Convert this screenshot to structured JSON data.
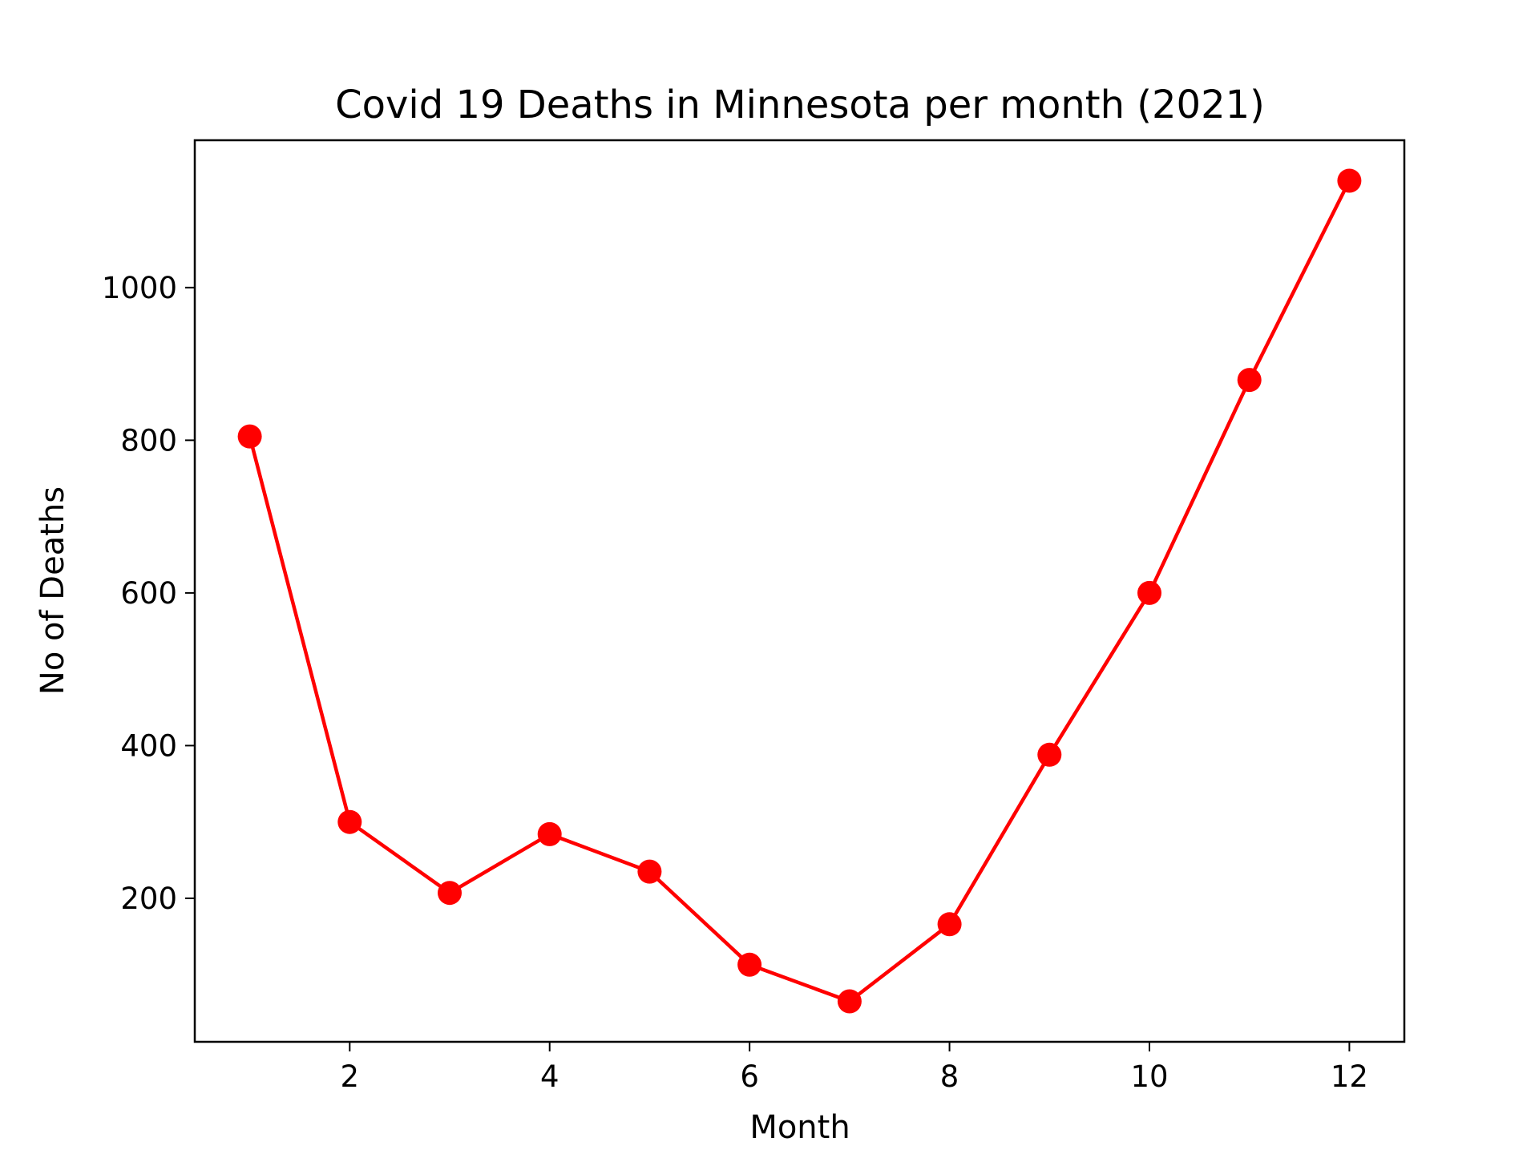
{
  "chart_data": {
    "type": "line",
    "title": "Covid 19 Deaths in Minnesota per month (2021)",
    "xlabel": "Month",
    "ylabel": "No of Deaths",
    "x": [
      1,
      2,
      3,
      4,
      5,
      6,
      7,
      8,
      9,
      10,
      11,
      12
    ],
    "series": [
      {
        "values": [
          805,
          300,
          207,
          284,
          235,
          113,
          65,
          166,
          388,
          600,
          879,
          1140
        ],
        "color": "#ff0000",
        "marker": "circle"
      }
    ],
    "xlim": [
      0.45,
      12.55
    ],
    "ylim": [
      12,
      1193
    ],
    "xticks": [
      2,
      4,
      6,
      8,
      10,
      12
    ],
    "yticks": [
      200,
      400,
      600,
      800,
      1000
    ],
    "grid": false,
    "legend": "none"
  }
}
